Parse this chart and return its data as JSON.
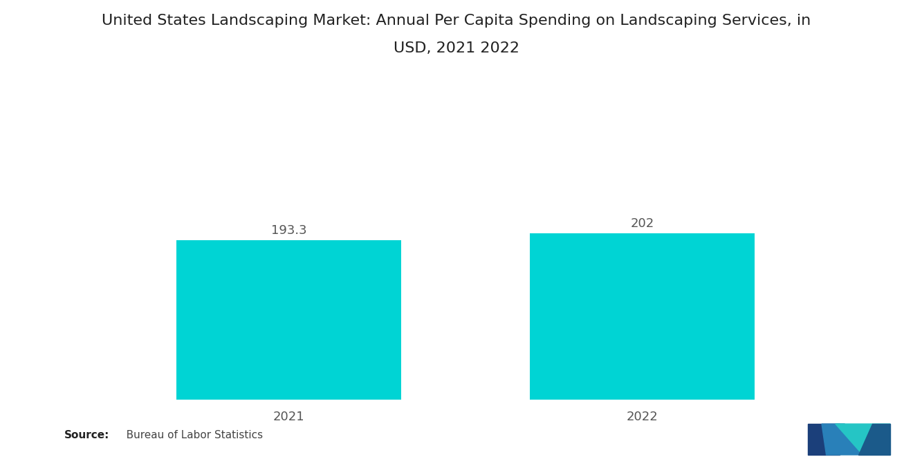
{
  "title_line1": "United States Landscaping Market: Annual Per Capita Spending on Landscaping Services, in",
  "title_line2": "USD, 2021 2022",
  "categories": [
    "2021",
    "2022"
  ],
  "values": [
    193.3,
    202
  ],
  "bar_color": "#00D4D4",
  "background_color": "#ffffff",
  "value_labels": [
    "193.3",
    "202"
  ],
  "ylim": [
    0,
    290
  ],
  "bar_width": 0.28,
  "x_positions": [
    0.28,
    0.72
  ],
  "xlim": [
    0.0,
    1.0
  ],
  "source_bold": "Source:",
  "source_rest": "   Bureau of Labor Statistics",
  "title_fontsize": 16,
  "tick_fontsize": 13,
  "value_fontsize": 13,
  "source_fontsize": 11,
  "logo_colors": [
    "#1a3a6b",
    "#2a82c0",
    "#1a6a9a",
    "#3acece"
  ],
  "text_color": "#555555"
}
